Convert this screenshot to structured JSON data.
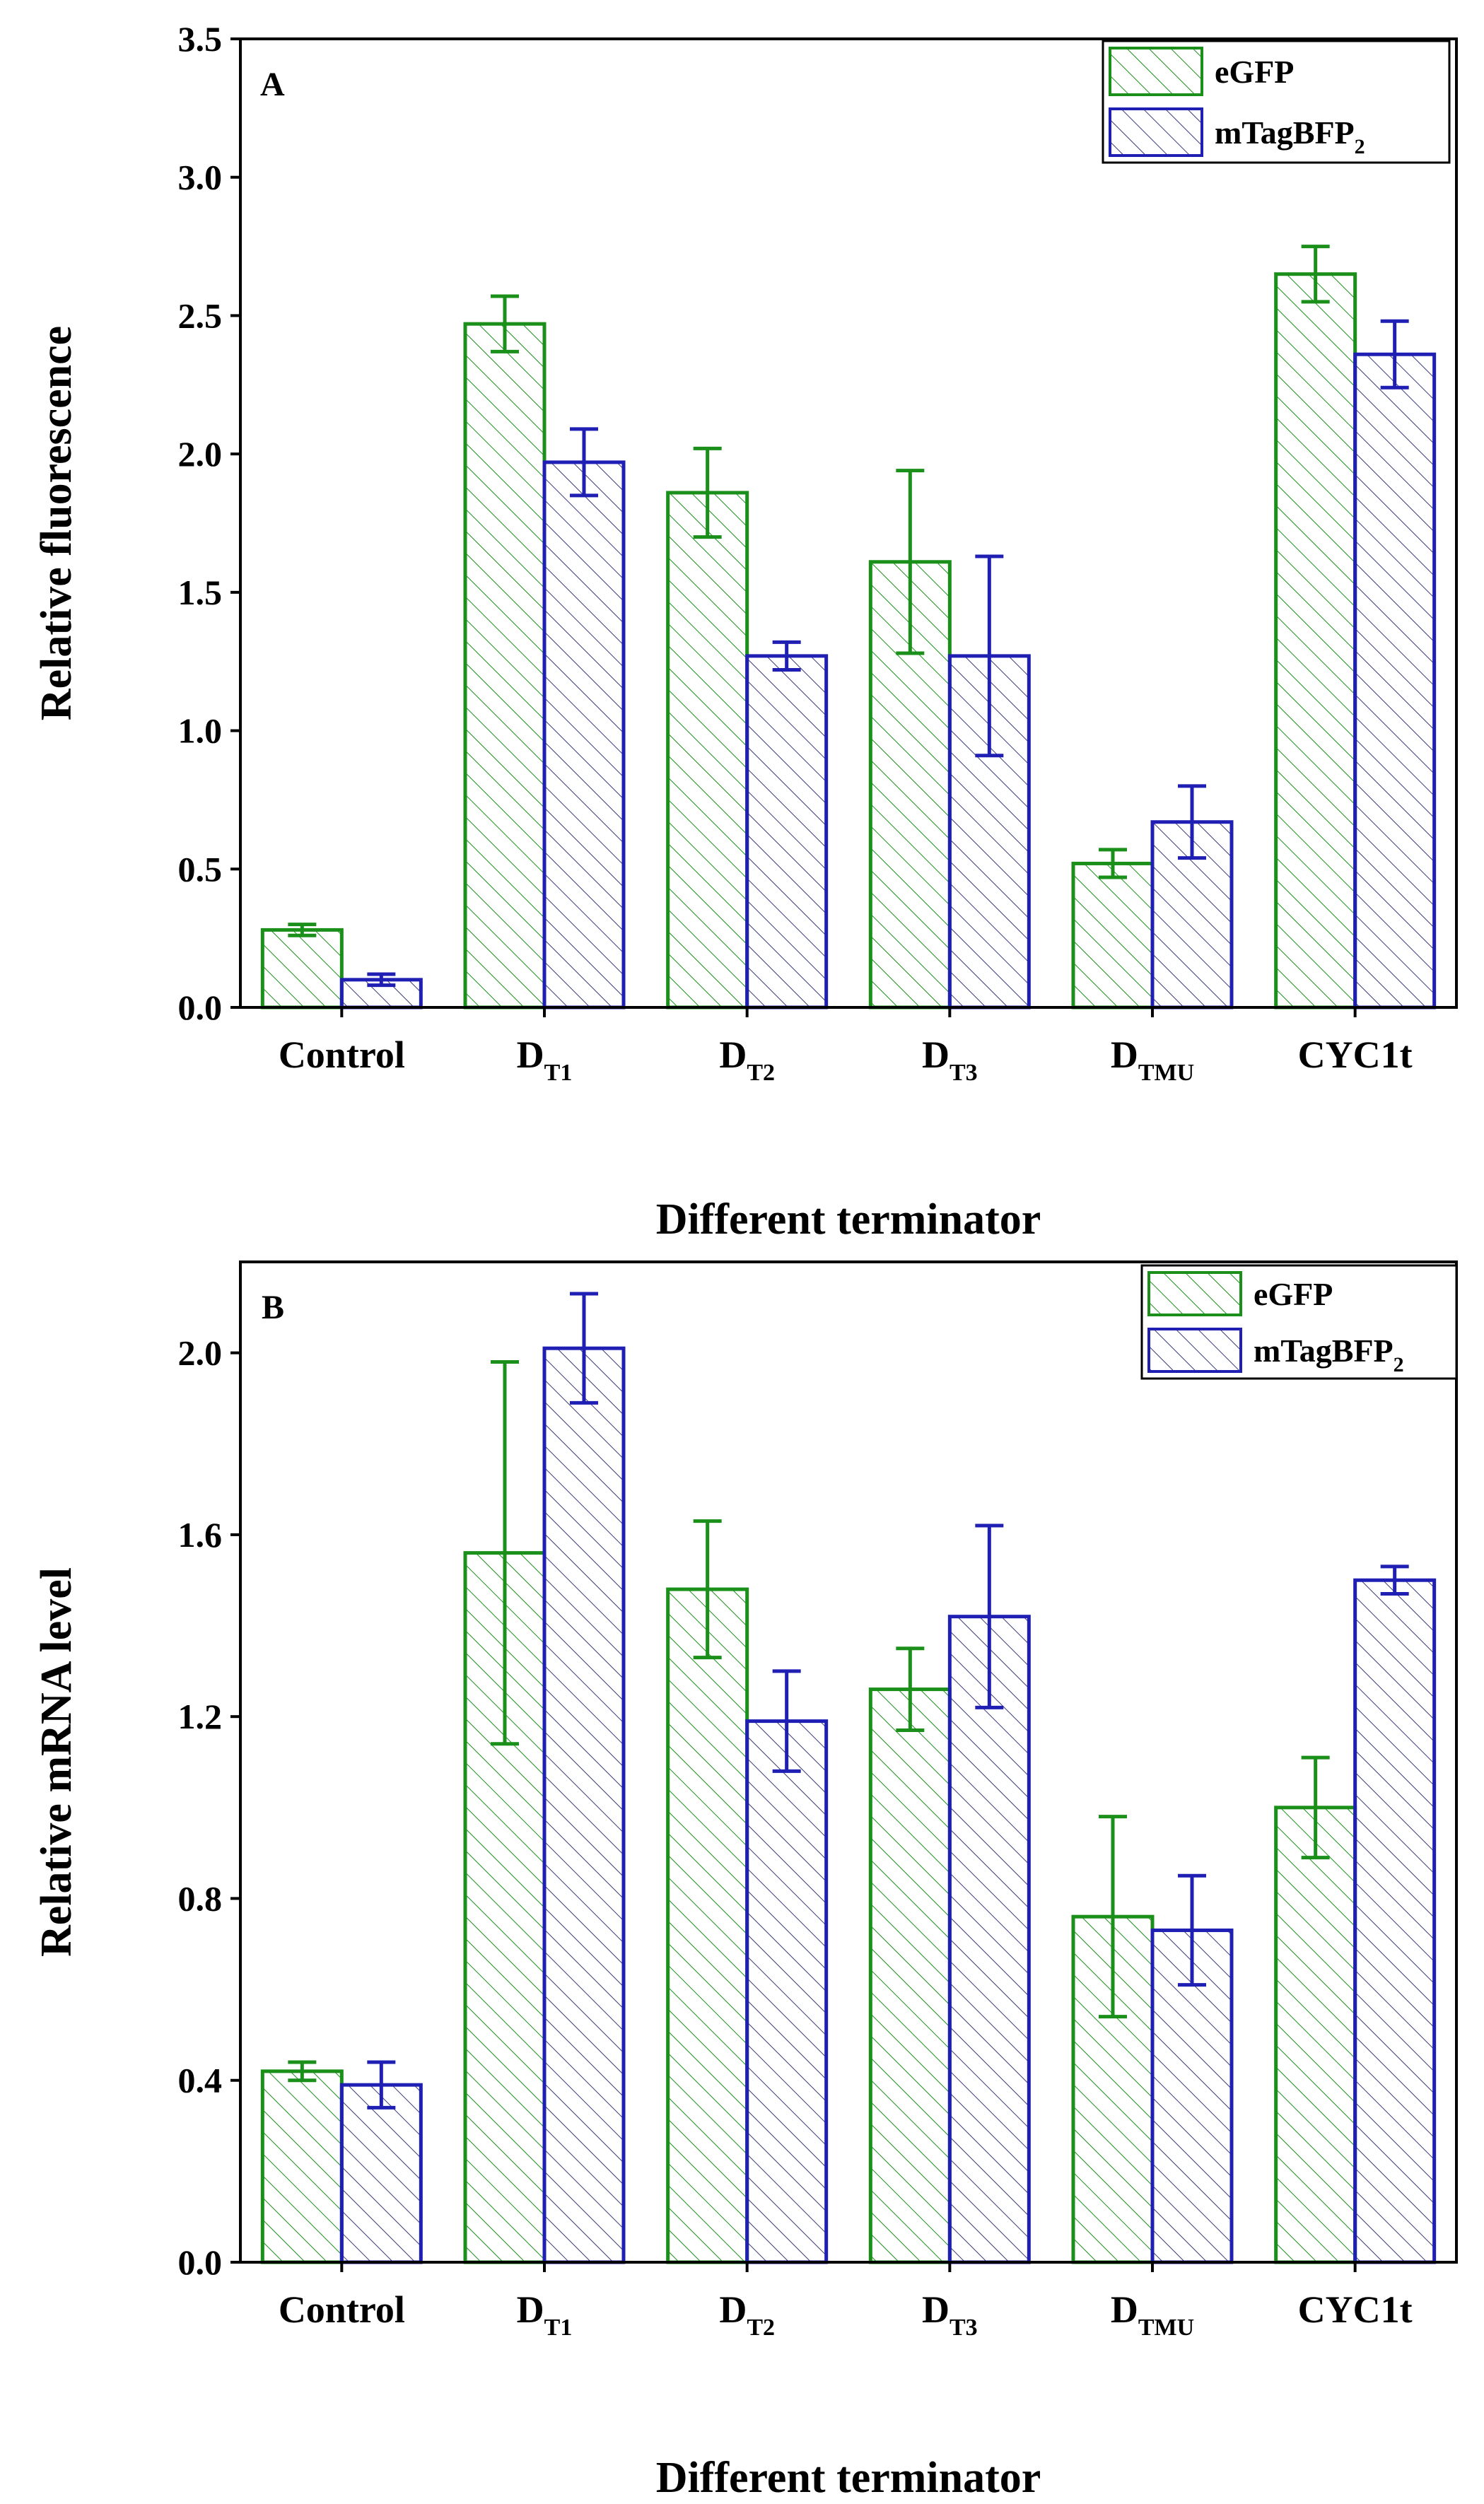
{
  "figure": {
    "panels": [
      {
        "panel_label": "A",
        "xlabel_text": "Different terminator",
        "ylabel_text": "Relative fluorescence",
        "legend_labels": [
          "eGFP",
          "mTagBFP2"
        ]
      },
      {
        "panel_label": "B",
        "xlabel_text": "Different terminator",
        "ylabel_text": "Relative mRNA level",
        "legend_labels": [
          "eGFP",
          "mTagBFP2"
        ]
      }
    ]
  },
  "chart_data": [
    {
      "type": "bar",
      "panel": "A",
      "title": "",
      "xlabel": "Different terminator",
      "ylabel": "Relative fluorescence",
      "ylim": [
        0,
        3.5
      ],
      "yticks": [
        "0.0",
        "0.5",
        "1.0",
        "1.5",
        "2.0",
        "2.5",
        "3.0",
        "3.5"
      ],
      "categories": [
        {
          "main": "Control",
          "sub": ""
        },
        {
          "main": "D",
          "sub": "T1"
        },
        {
          "main": "D",
          "sub": "T2"
        },
        {
          "main": "D",
          "sub": "T3"
        },
        {
          "main": "D",
          "sub": "TMU"
        },
        {
          "main": "CYC1t",
          "sub": ""
        }
      ],
      "series": [
        {
          "name": "eGFP",
          "name_main": "eGFP",
          "name_sub": "",
          "color": "#1a8f1a",
          "values": [
            0.28,
            2.47,
            1.86,
            1.61,
            0.52,
            2.65
          ],
          "errors": [
            0.02,
            0.1,
            0.16,
            0.33,
            0.05,
            0.1
          ]
        },
        {
          "name": "mTagBFP2",
          "name_main": "mTagBFP",
          "name_sub": "2",
          "color": "#1f1fb4",
          "values": [
            0.1,
            1.97,
            1.27,
            1.27,
            0.67,
            2.36
          ],
          "errors": [
            0.02,
            0.12,
            0.05,
            0.36,
            0.13,
            0.12
          ]
        }
      ],
      "legend": "top-right"
    },
    {
      "type": "bar",
      "panel": "B",
      "title": "",
      "xlabel": "Different terminator",
      "ylabel": "Relative mRNA level",
      "ylim": [
        0,
        2.2
      ],
      "yticks": [
        "0.0",
        "0.4",
        "0.8",
        "1.2",
        "1.6",
        "2.0"
      ],
      "categories": [
        {
          "main": "Control",
          "sub": ""
        },
        {
          "main": "D",
          "sub": "T1"
        },
        {
          "main": "D",
          "sub": "T2"
        },
        {
          "main": "D",
          "sub": "T3"
        },
        {
          "main": "D",
          "sub": "TMU"
        },
        {
          "main": "CYC1t",
          "sub": ""
        }
      ],
      "series": [
        {
          "name": "eGFP",
          "name_main": "eGFP",
          "name_sub": "",
          "color": "#1a8f1a",
          "values": [
            0.42,
            1.56,
            1.48,
            1.26,
            0.76,
            1.0
          ],
          "errors": [
            0.02,
            0.42,
            0.15,
            0.09,
            0.22,
            0.11
          ]
        },
        {
          "name": "mTagBFP2",
          "name_main": "mTagBFP",
          "name_sub": "2",
          "color": "#1f1fb4",
          "values": [
            0.39,
            2.01,
            1.19,
            1.42,
            0.73,
            1.5
          ],
          "errors": [
            0.05,
            0.12,
            0.11,
            0.2,
            0.12,
            0.03
          ]
        }
      ],
      "legend": "top-right"
    }
  ]
}
